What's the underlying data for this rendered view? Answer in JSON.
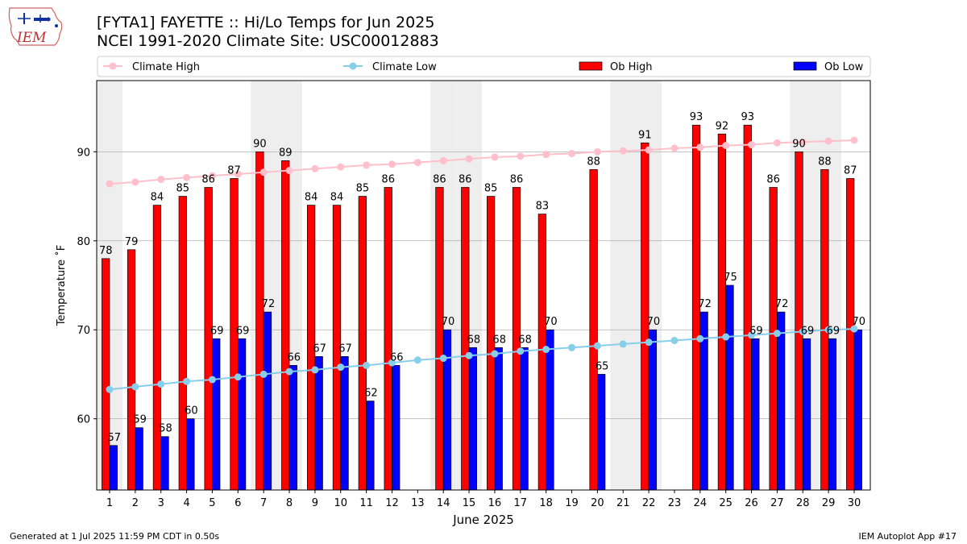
{
  "header": {
    "logo_text": "IEM",
    "title_line1": "[FYTA1] FAYETTE :: Hi/Lo Temps for Jun 2025",
    "title_line2": "NCEI 1991-2020 Climate Site: USC00012883"
  },
  "footer": {
    "left": "Generated at 1 Jul 2025 11:59 PM CDT in 0.50s",
    "right": "IEM Autoplot App #17"
  },
  "colors": {
    "climate_high": "#ffc0cb",
    "climate_low": "#87ceeb",
    "ob_high": "#ff0000",
    "ob_low": "#0000ff",
    "weekend_shade": "#eeeeee",
    "grid": "#b0b0b0"
  },
  "chart_data": {
    "type": "bar",
    "xlabel": "June 2025",
    "ylabel": "Temperature ˚F",
    "ylim": [
      52,
      98
    ],
    "yticks": [
      60,
      70,
      80,
      90
    ],
    "grid": "horizontal",
    "legend_position": "top",
    "legend": [
      "Climate High",
      "Climate Low",
      "Ob High",
      "Ob Low"
    ],
    "categories": [
      "1",
      "2",
      "3",
      "4",
      "5",
      "6",
      "7",
      "8",
      "9",
      "10",
      "11",
      "12",
      "13",
      "14",
      "15",
      "16",
      "17",
      "18",
      "19",
      "20",
      "21",
      "22",
      "23",
      "24",
      "25",
      "26",
      "27",
      "28",
      "29",
      "30"
    ],
    "shaded_days": [
      1,
      7,
      8,
      14,
      15,
      21,
      22,
      28,
      29
    ],
    "series": [
      {
        "name": "Ob High",
        "type": "bar",
        "values": [
          78,
          79,
          84,
          85,
          86,
          87,
          90,
          89,
          84,
          84,
          85,
          86,
          null,
          86,
          86,
          85,
          86,
          83,
          null,
          88,
          null,
          91,
          null,
          93,
          92,
          93,
          86,
          90,
          88,
          87
        ]
      },
      {
        "name": "Ob Low",
        "type": "bar",
        "values": [
          57,
          59,
          58,
          60,
          69,
          69,
          72,
          66,
          67,
          67,
          62,
          66,
          null,
          70,
          68,
          68,
          68,
          70,
          null,
          65,
          null,
          70,
          null,
          72,
          75,
          69,
          72,
          69,
          69,
          70
        ]
      },
      {
        "name": "Climate High",
        "type": "line",
        "values": [
          86.4,
          86.6,
          86.9,
          87.1,
          87.3,
          87.5,
          87.7,
          87.9,
          88.1,
          88.3,
          88.5,
          88.6,
          88.8,
          89.0,
          89.2,
          89.4,
          89.5,
          89.7,
          89.8,
          90.0,
          90.1,
          90.2,
          90.4,
          90.5,
          90.7,
          90.8,
          91.0,
          91.1,
          91.2,
          91.3
        ]
      },
      {
        "name": "Climate Low",
        "type": "line",
        "values": [
          63.3,
          63.6,
          63.9,
          64.2,
          64.4,
          64.7,
          65.0,
          65.3,
          65.5,
          65.8,
          66.0,
          66.3,
          66.6,
          66.8,
          67.1,
          67.3,
          67.6,
          67.8,
          68.0,
          68.2,
          68.4,
          68.6,
          68.8,
          69.0,
          69.2,
          69.4,
          69.6,
          69.8,
          70.0,
          70.1
        ]
      }
    ]
  }
}
